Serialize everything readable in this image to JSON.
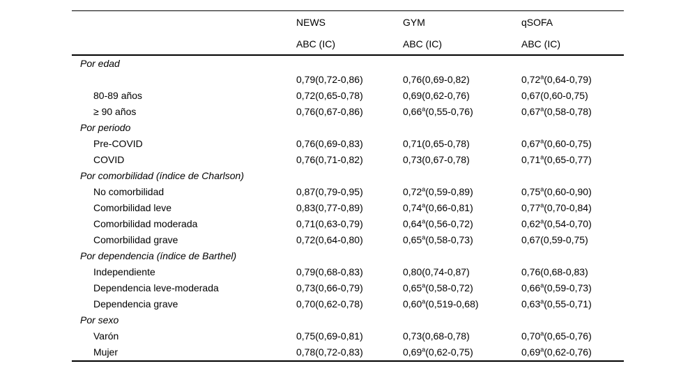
{
  "page": {
    "background": "#ffffff",
    "text_color": "#000000"
  },
  "table": {
    "columns": [
      {
        "name": "NEWS",
        "sub": "ABC (IC)"
      },
      {
        "name": "GYM",
        "sub": "ABC (IC)"
      },
      {
        "name": "qSOFA",
        "sub": "ABC (IC)"
      }
    ],
    "footnote_marker": "a",
    "sections": [
      {
        "title": "Por edad",
        "rows": [
          {
            "label": "",
            "values": [
              "0,79(0,72-0,86)",
              "0,76(0,69-0,82)",
              "0,72ᵃ(0,64-0,79)"
            ]
          },
          {
            "label": "80-89 años",
            "values": [
              "0,72(0,65-0,78)",
              "0,69(0,62-0,76)",
              "0,67(0,60-0,75)"
            ]
          },
          {
            "label": "≥ 90 años",
            "values": [
              "0,76(0,67-0,86)",
              "0,66ᵃ(0,55-0,76)",
              "0,67ᵃ(0,58-0,78)"
            ]
          }
        ]
      },
      {
        "title": "Por periodo",
        "rows": [
          {
            "label": "Pre-COVID",
            "values": [
              "0,76(0,69-0,83)",
              "0,71(0,65-0,78)",
              "0,67ᵃ(0,60-0,75)"
            ]
          },
          {
            "label": "COVID",
            "values": [
              "0,76(0,71-0,82)",
              "0,73(0,67-0,78)",
              "0,71ᵃ(0,65-0,77)"
            ]
          }
        ]
      },
      {
        "title": "Por comorbilidad (índice de Charlson)",
        "rows": [
          {
            "label": "No comorbilidad",
            "values": [
              "0,87(0,79-0,95)",
              "0,72ᵃ(0,59-0,89)",
              "0,75ᵃ(0,60-0,90)"
            ]
          },
          {
            "label": "Comorbilidad leve",
            "values": [
              "0,83(0,77-0,89)",
              "0,74ᵃ(0,66-0,81)",
              "0,77ᵃ(0,70-0,84)"
            ]
          },
          {
            "label": "Comorbilidad moderada",
            "values": [
              "0,71(0,63-0,79)",
              "0,64ᵃ(0,56-0,72)",
              "0,62ᵃ(0,54-0,70)"
            ]
          },
          {
            "label": "Comorbilidad grave",
            "values": [
              "0,72(0,64-0,80)",
              "0,65ᵃ(0,58-0,73)",
              "0,67(0,59-0,75)"
            ]
          }
        ]
      },
      {
        "title": "Por dependencia (índice de Barthel)",
        "rows": [
          {
            "label": "Independiente",
            "values": [
              "0,79(0,68-0,83)",
              "0,80(0,74-0,87)",
              "0,76(0,68-0,83)"
            ]
          },
          {
            "label": "Dependencia leve-moderada",
            "values": [
              "0,73(0,66-0,79)",
              "0,65ᵃ(0,58-0,72)",
              "0,66ᵃ(0,59-0,73)"
            ]
          },
          {
            "label": "Dependencia grave",
            "values": [
              "0,70(0,62-0,78)",
              "0,60ᵃ(0,519-0,68)",
              "0,63ᵃ(0,55-0,71)"
            ]
          }
        ]
      },
      {
        "title": "Por sexo",
        "rows": [
          {
            "label": "Varón",
            "values": [
              "0,75(0,69-0,81)",
              "0,73(0,68-0,78)",
              "0,70ᵃ(0,65-0,76)"
            ]
          },
          {
            "label": "Mujer",
            "values": [
              "0,78(0,72-0,83)",
              "0,69ᵃ(0,62-0,75)",
              "0,69ᵃ(0,62-0,76)"
            ]
          }
        ]
      }
    ]
  }
}
